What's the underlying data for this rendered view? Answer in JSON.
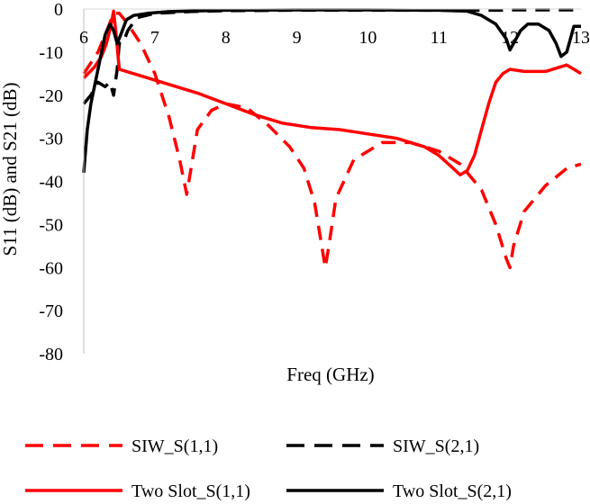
{
  "chart_data": {
    "type": "line",
    "title": "",
    "xlabel": "Freq (GHz)",
    "ylabel": "S11 (dB) and S21 (dB)",
    "xlim": [
      6,
      13
    ],
    "ylim": [
      -80,
      0
    ],
    "x_ticks": [
      "6",
      "7",
      "8",
      "9",
      "10",
      "11",
      "12",
      "13"
    ],
    "y_ticks": [
      "0",
      "-10",
      "-20",
      "-30",
      "-40",
      "-50",
      "-60",
      "-70",
      "-80"
    ],
    "grid": false,
    "legend_position": "bottom",
    "series": [
      {
        "name": "SIW_S(1,1)",
        "color": "#ff0000",
        "dash": "dashed",
        "x": [
          6.0,
          6.2,
          6.35,
          6.42,
          6.5,
          6.6,
          6.8,
          7.0,
          7.2,
          7.35,
          7.45,
          7.5,
          7.6,
          7.8,
          8.0,
          8.3,
          8.6,
          8.9,
          9.1,
          9.25,
          9.35,
          9.4,
          9.45,
          9.55,
          9.8,
          10.2,
          10.6,
          11.0,
          11.3,
          11.6,
          11.8,
          11.95,
          12.0,
          12.05,
          12.2,
          12.5,
          12.8,
          13.0
        ],
        "y": [
          -15.0,
          -10.0,
          -4.0,
          -1.0,
          -1.0,
          -3.0,
          -8.0,
          -15.0,
          -25.0,
          -35.0,
          -43.0,
          -38.0,
          -28.0,
          -23.5,
          -22.0,
          -23.0,
          -27.0,
          -32.0,
          -37.0,
          -45.0,
          -55.0,
          -60.0,
          -55.0,
          -44.0,
          -35.0,
          -31.0,
          -31.0,
          -33.0,
          -36.0,
          -42.0,
          -50.0,
          -58.0,
          -60.0,
          -55.0,
          -47.0,
          -41.0,
          -37.0,
          -36.0
        ]
      },
      {
        "name": "SIW_S(2,1)",
        "color": "#000000",
        "dash": "dashed",
        "x": [
          6.0,
          6.1,
          6.2,
          6.3,
          6.37,
          6.42,
          6.47,
          6.5,
          6.55,
          6.62,
          6.75,
          7.0,
          7.5,
          8.0,
          9.0,
          10.0,
          11.0,
          11.9,
          12.0,
          13.0
        ],
        "y": [
          -22.0,
          -20.0,
          -17.0,
          -18.0,
          -17.0,
          -20.0,
          -14.0,
          -8.0,
          -8.0,
          -5.0,
          -2.0,
          -1.0,
          -0.6,
          -0.4,
          -0.3,
          -0.3,
          -0.3,
          -0.3,
          -0.2,
          -0.2
        ]
      },
      {
        "name": "Two Slot_S(1,1)",
        "color": "#ff0000",
        "dash": "solid",
        "x": [
          6.0,
          6.15,
          6.25,
          6.32,
          6.38,
          6.42,
          6.45,
          6.5,
          6.8,
          7.2,
          7.6,
          8.0,
          8.4,
          8.8,
          9.2,
          9.6,
          10.0,
          10.4,
          10.8,
          11.0,
          11.2,
          11.3,
          11.4,
          11.5,
          11.6,
          11.7,
          11.8,
          11.9,
          12.0,
          12.2,
          12.5,
          12.8,
          13.0
        ],
        "y": [
          -16.0,
          -13.5,
          -11.0,
          -8.0,
          -4.0,
          -0.5,
          -5.0,
          -14.0,
          -15.5,
          -17.5,
          -19.5,
          -22.0,
          -24.5,
          -26.5,
          -27.5,
          -28.0,
          -29.0,
          -30.0,
          -32.0,
          -34.0,
          -37.0,
          -38.5,
          -37.5,
          -34.0,
          -28.0,
          -22.0,
          -17.0,
          -15.0,
          -14.0,
          -14.5,
          -14.5,
          -13.0,
          -15.0
        ]
      },
      {
        "name": "Two Slot_S(2,1)",
        "color": "#000000",
        "dash": "solid",
        "x": [
          6.0,
          6.05,
          6.1,
          6.2,
          6.3,
          6.37,
          6.42,
          6.47,
          6.52,
          6.6,
          6.7,
          6.9,
          7.2,
          8.0,
          9.0,
          10.0,
          11.0,
          11.4,
          11.6,
          11.8,
          11.95,
          12.0,
          12.05,
          12.15,
          12.25,
          12.4,
          12.55,
          12.65,
          12.72,
          12.8,
          12.9,
          13.0
        ],
        "y": [
          -38.0,
          -28.0,
          -22.0,
          -14.0,
          -6.0,
          -3.5,
          -5.0,
          -8.0,
          -6.0,
          -2.5,
          -1.5,
          -1.0,
          -0.6,
          -0.3,
          -0.2,
          -0.2,
          -0.3,
          -0.5,
          -1.5,
          -3.5,
          -7.0,
          -9.5,
          -8.0,
          -5.0,
          -3.5,
          -3.5,
          -5.0,
          -8.0,
          -11.0,
          -10.0,
          -4.0,
          -4.0
        ]
      }
    ]
  }
}
